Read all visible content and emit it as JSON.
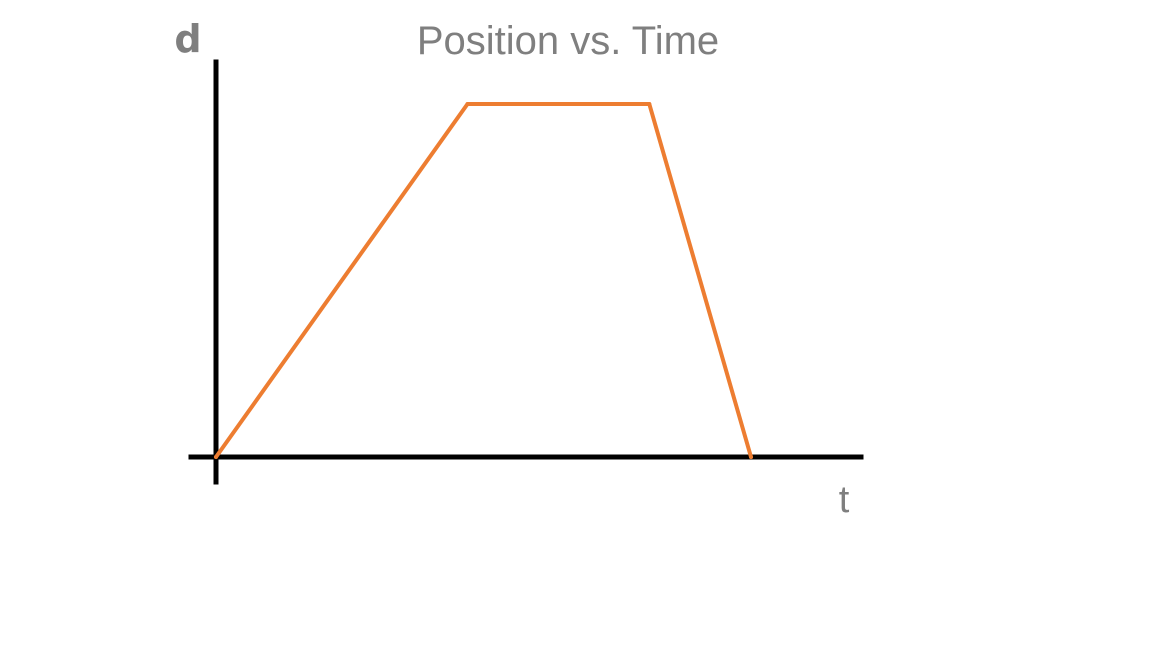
{
  "chart_data": {
    "type": "line",
    "title": "Position vs. Time",
    "xlabel": "t",
    "ylabel": "d",
    "series": [
      {
        "x": [
          0,
          4.7,
          8.1,
          10
        ],
        "y": [
          0,
          10,
          10,
          0
        ]
      }
    ],
    "xlim": [
      0,
      12
    ],
    "ylim": [
      0,
      11.5
    ],
    "grid": false,
    "colors": {
      "line": "#ed7d31",
      "axis": "#000000",
      "text": "#7f7f7f"
    }
  }
}
